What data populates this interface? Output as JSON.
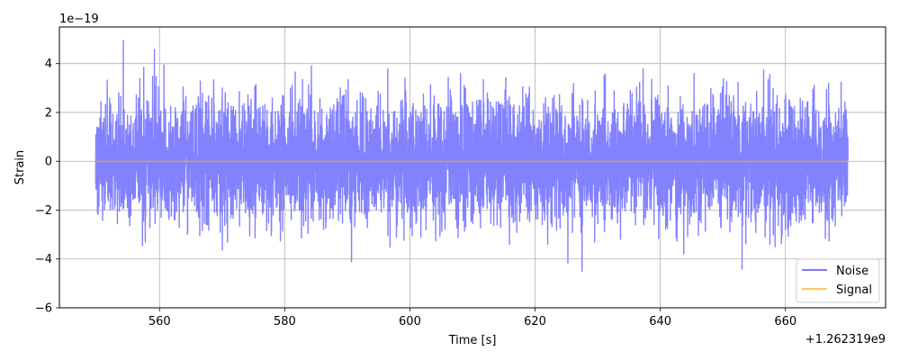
{
  "chart_data": {
    "type": "line",
    "title": "",
    "xlabel": "Time [s]",
    "ylabel": "Strain",
    "x_offset_label": "+1.262319e9",
    "y_scale_label": "1e−19",
    "xlim": [
      544.0,
      676.0
    ],
    "ylim": [
      -6.0,
      5.5
    ],
    "x_ticks": [
      560,
      580,
      600,
      620,
      640,
      660
    ],
    "x_tick_labels": [
      "560",
      "580",
      "600",
      "620",
      "640",
      "660"
    ],
    "y_ticks": [
      -6,
      -4,
      -2,
      0,
      2,
      4
    ],
    "y_tick_labels": [
      "−6",
      "−4",
      "−2",
      "0",
      "2",
      "4"
    ],
    "grid": true,
    "legend_position": "lower-right",
    "series": [
      {
        "name": "Noise",
        "color": "#7b7bff",
        "x_range": [
          549.8,
          670.0
        ],
        "y_extent": [
          -5.5,
          4.95
        ],
        "description": "dense gaussian noise"
      },
      {
        "name": "Signal",
        "color": "#ffa500",
        "x": [
          549.8,
          670.0
        ],
        "y": [
          0.0,
          0.0
        ]
      }
    ]
  }
}
